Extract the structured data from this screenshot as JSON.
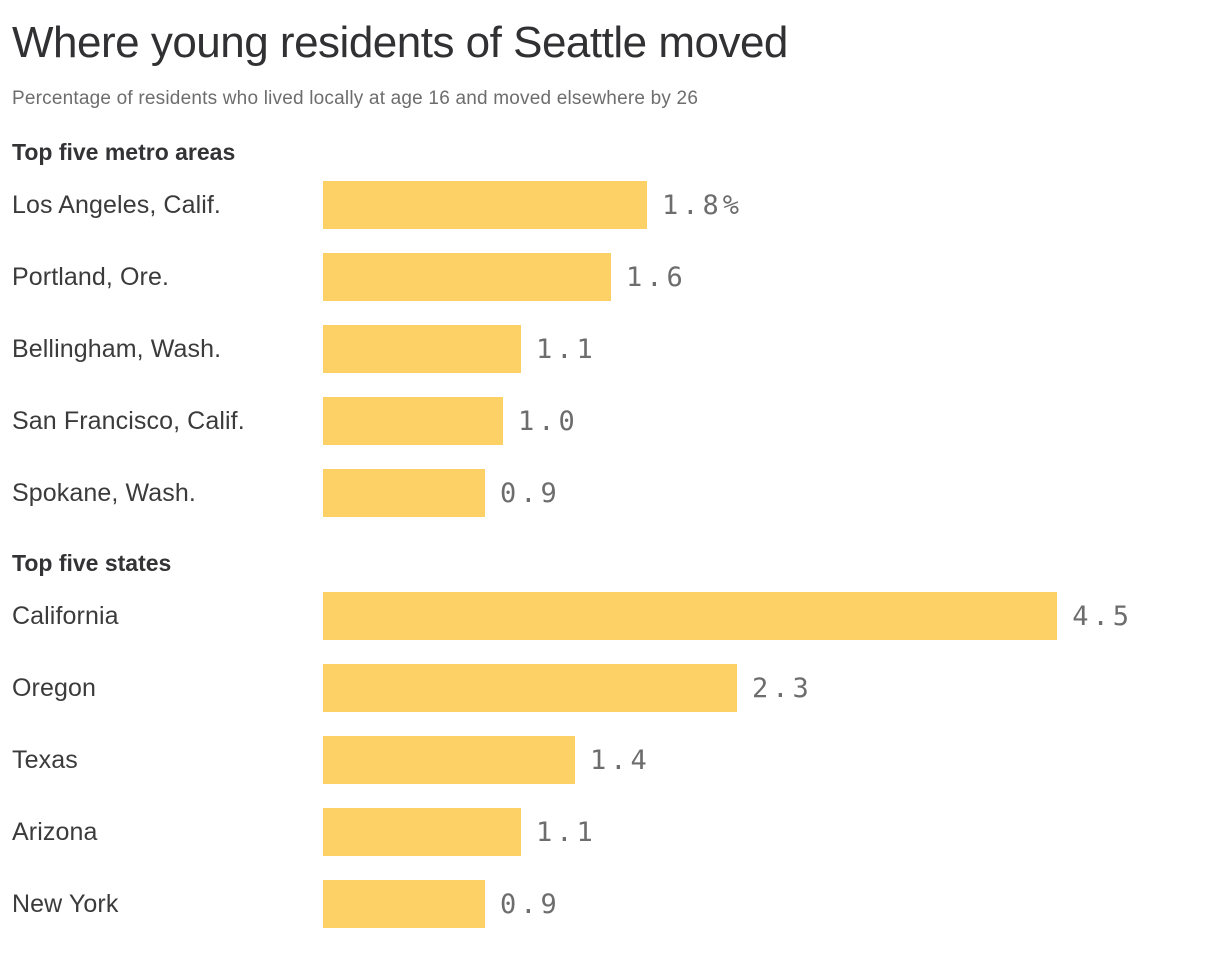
{
  "header": {
    "title": "Where young residents of Seattle moved",
    "subtitle": "Percentage of residents who lived locally at age 16 and moved elsewhere by 26"
  },
  "colors": {
    "bar": "#fdd166",
    "title_text": "#313032",
    "label_text": "#3b3b3b",
    "value_text": "#6d6d6d"
  },
  "chart_data": {
    "type": "bar",
    "orientation": "horizontal",
    "unit": "%",
    "xlim": [
      0,
      4.5
    ],
    "grid": false,
    "legend": "none",
    "title": "Where young residents of Seattle moved",
    "subtitle": "Percentage of residents who lived locally at age 16 and moved elsewhere by 26",
    "sections": [
      {
        "label": "Top five metro areas",
        "categories": [
          "Los Angeles, Calif.",
          "Portland, Ore.",
          "Bellingham, Wash.",
          "San Francisco, Calif.",
          "Spokane, Wash."
        ],
        "values": [
          1.8,
          1.6,
          1.1,
          1.0,
          0.9
        ],
        "value_labels": [
          "1.8%",
          "1.6",
          "1.1",
          "1.0",
          "0.9"
        ]
      },
      {
        "label": "Top five states",
        "categories": [
          "California",
          "Oregon",
          "Texas",
          "Arizona",
          "New York"
        ],
        "values": [
          4.5,
          2.3,
          1.4,
          1.1,
          0.9
        ],
        "value_labels": [
          "4.5",
          "2.3",
          "1.4",
          "1.1",
          "0.9"
        ]
      }
    ]
  }
}
